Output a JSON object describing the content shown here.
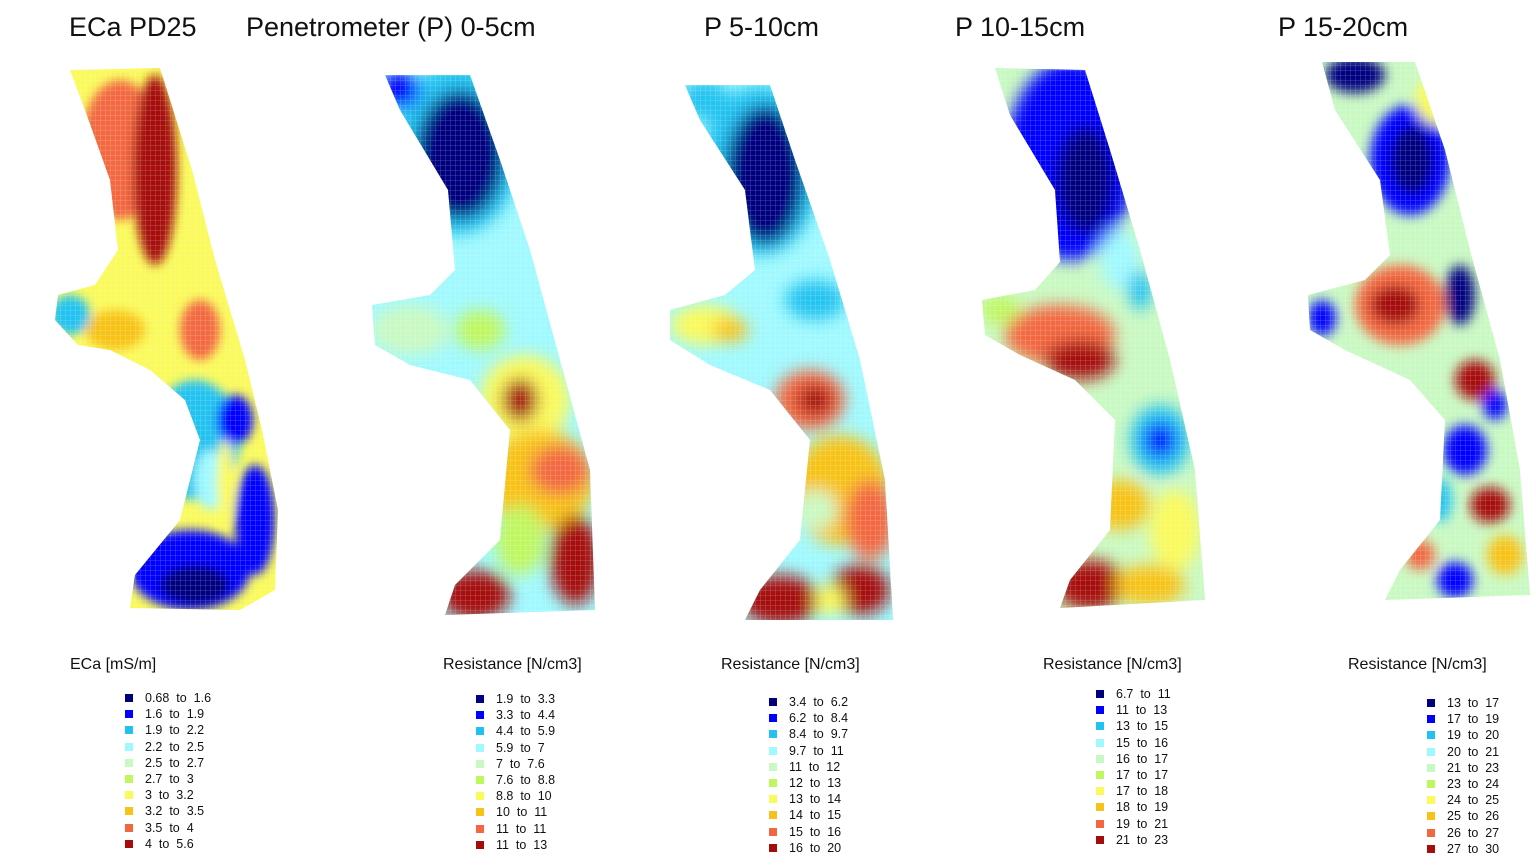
{
  "panels": [
    {
      "title": "ECa PD25",
      "legend_title": "ECa [mS/m]",
      "classes": [
        {
          "label": "0.68  to  1.6",
          "color": "#00007f"
        },
        {
          "label": "1.6  to  1.9",
          "color": "#0000ff"
        },
        {
          "label": "1.9  to  2.2",
          "color": "#22c2f0"
        },
        {
          "label": "2.2  to  2.5",
          "color": "#9ff9fe"
        },
        {
          "label": "2.5  to  2.7",
          "color": "#c9f9c2"
        },
        {
          "label": "2.7  to  3",
          "color": "#bff75e"
        },
        {
          "label": "3  to  3.2",
          "color": "#fafa5a"
        },
        {
          "label": "3.2  to  3.5",
          "color": "#f7c219"
        },
        {
          "label": "3.5  to  4",
          "color": "#f2673f"
        },
        {
          "label": "4  to  5.6",
          "color": "#a50d0d"
        }
      ]
    },
    {
      "title": "Penetrometer (P) 0-5cm",
      "legend_title": "Resistance [N/cm3]",
      "classes": [
        {
          "label": "1.9  to  3.3",
          "color": "#00007f"
        },
        {
          "label": "3.3  to  4.4",
          "color": "#0000ff"
        },
        {
          "label": "4.4  to  5.9",
          "color": "#22c2f0"
        },
        {
          "label": "5.9  to  7",
          "color": "#9ff9fe"
        },
        {
          "label": "7  to  7.6",
          "color": "#c9f9c2"
        },
        {
          "label": "7.6  to  8.8",
          "color": "#bff75e"
        },
        {
          "label": "8.8  to  10",
          "color": "#fafa5a"
        },
        {
          "label": "10  to  11",
          "color": "#f7c219"
        },
        {
          "label": "11  to  11",
          "color": "#f2673f"
        },
        {
          "label": "11  to  13",
          "color": "#a50d0d"
        }
      ]
    },
    {
      "title": "P 5-10cm",
      "legend_title": "Resistance [N/cm3]",
      "classes": [
        {
          "label": "3.4  to  6.2",
          "color": "#00007f"
        },
        {
          "label": "6.2  to  8.4",
          "color": "#0000ff"
        },
        {
          "label": "8.4  to  9.7",
          "color": "#22c2f0"
        },
        {
          "label": "9.7  to  11",
          "color": "#9ff9fe"
        },
        {
          "label": "11  to  12",
          "color": "#c9f9c2"
        },
        {
          "label": "12  to  13",
          "color": "#bff75e"
        },
        {
          "label": "13  to  14",
          "color": "#fafa5a"
        },
        {
          "label": "14  to  15",
          "color": "#f7c219"
        },
        {
          "label": "15  to  16",
          "color": "#f2673f"
        },
        {
          "label": "16  to  20",
          "color": "#a50d0d"
        }
      ]
    },
    {
      "title": "P 10-15cm",
      "legend_title": "Resistance [N/cm3]",
      "classes": [
        {
          "label": "6.7  to  11",
          "color": "#00007f"
        },
        {
          "label": "11  to  13",
          "color": "#0000ff"
        },
        {
          "label": "13  to  15",
          "color": "#22c2f0"
        },
        {
          "label": "15  to  16",
          "color": "#9ff9fe"
        },
        {
          "label": "16  to  17",
          "color": "#c9f9c2"
        },
        {
          "label": "17  to  17",
          "color": "#bff75e"
        },
        {
          "label": "17  to  18",
          "color": "#fafa5a"
        },
        {
          "label": "18  to  19",
          "color": "#f7c219"
        },
        {
          "label": "19  to  21",
          "color": "#f2673f"
        },
        {
          "label": "21  to  23",
          "color": "#a50d0d"
        }
      ]
    },
    {
      "title": "P 15-20cm",
      "legend_title": "Resistance [N/cm3]",
      "classes": [
        {
          "label": "13  to  17",
          "color": "#00007f"
        },
        {
          "label": "17  to  19",
          "color": "#0000ff"
        },
        {
          "label": "19  to  20",
          "color": "#22c2f0"
        },
        {
          "label": "20  to  21",
          "color": "#9ff9fe"
        },
        {
          "label": "21  to  23",
          "color": "#c9f9c2"
        },
        {
          "label": "23  to  24",
          "color": "#bff75e"
        },
        {
          "label": "24  to  25",
          "color": "#fafa5a"
        },
        {
          "label": "25  to  26",
          "color": "#f7c219"
        },
        {
          "label": "26  to  27",
          "color": "#f2673f"
        },
        {
          "label": "27  to  30",
          "color": "#a50d0d"
        }
      ]
    }
  ]
}
